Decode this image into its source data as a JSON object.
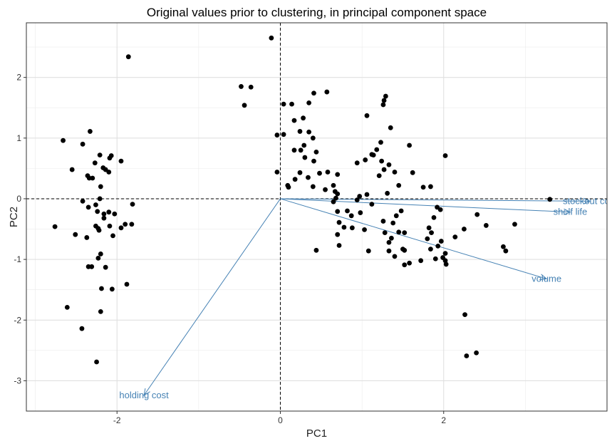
{
  "chart_data": {
    "type": "scatter",
    "title": "Original values prior to clustering, in principal component space",
    "xlabel": "PC1",
    "ylabel": "PC2",
    "xlim": [
      -3.11,
      4.0
    ],
    "ylim": [
      -3.5,
      2.9
    ],
    "x_ticks": [
      -2,
      0,
      2
    ],
    "y_ticks": [
      -3,
      -2,
      -1,
      0,
      1,
      2
    ],
    "x_tick_labels": [
      "-2",
      "0",
      "2"
    ],
    "y_tick_labels": [
      "-3",
      "-2",
      "-1",
      "0",
      "1",
      "2"
    ],
    "grid": true,
    "reference_lines": {
      "x": 0,
      "y": 0,
      "style": "dashed"
    },
    "points": [
      [
        -1.86,
        2.34
      ],
      [
        -2.66,
        0.96
      ],
      [
        -2.55,
        0.48
      ],
      [
        -2.42,
        0.9
      ],
      [
        -2.33,
        1.11
      ],
      [
        -2.36,
        0.38
      ],
      [
        -2.3,
        0.34
      ],
      [
        -2.27,
        0.59
      ],
      [
        -2.21,
        0.72
      ],
      [
        -2.14,
        0.48
      ],
      [
        -2.1,
        0.44
      ],
      [
        -2.09,
        0.67
      ],
      [
        -2.07,
        0.71
      ],
      [
        -2.17,
        0.51
      ],
      [
        -2.34,
        0.34
      ],
      [
        -2.2,
        0.2
      ],
      [
        -1.95,
        0.62
      ],
      [
        -2.21,
        0.0
      ],
      [
        -2.42,
        -0.04
      ],
      [
        -2.35,
        -0.14
      ],
      [
        -2.26,
        -0.1
      ],
      [
        -2.24,
        -0.21
      ],
      [
        -2.16,
        -0.25
      ],
      [
        -2.1,
        -0.22
      ],
      [
        -2.03,
        -0.25
      ],
      [
        -1.81,
        -0.09
      ],
      [
        -2.16,
        -0.32
      ],
      [
        -2.26,
        -0.45
      ],
      [
        -2.23,
        -0.49
      ],
      [
        -2.09,
        -0.45
      ],
      [
        -2.05,
        -0.61
      ],
      [
        -1.95,
        -0.48
      ],
      [
        -1.9,
        -0.42
      ],
      [
        -1.82,
        -0.42
      ],
      [
        -2.76,
        -0.46
      ],
      [
        -2.51,
        -0.59
      ],
      [
        -2.37,
        -0.64
      ],
      [
        -2.22,
        -0.52
      ],
      [
        -2.2,
        -0.91
      ],
      [
        -2.23,
        -0.98
      ],
      [
        -2.14,
        -1.13
      ],
      [
        -2.35,
        -1.12
      ],
      [
        -2.31,
        -1.12
      ],
      [
        -2.19,
        -1.48
      ],
      [
        -2.06,
        -1.49
      ],
      [
        -1.88,
        -1.41
      ],
      [
        -2.2,
        -1.86
      ],
      [
        -2.61,
        -1.79
      ],
      [
        -2.43,
        -2.14
      ],
      [
        -2.25,
        -2.69
      ],
      [
        -0.11,
        2.65
      ],
      [
        -0.36,
        1.84
      ],
      [
        -0.48,
        1.85
      ],
      [
        -0.44,
        1.54
      ],
      [
        0.04,
        1.56
      ],
      [
        0.14,
        1.56
      ],
      [
        0.04,
        1.06
      ],
      [
        -0.04,
        1.05
      ],
      [
        -0.04,
        0.44
      ],
      [
        0.09,
        0.22
      ],
      [
        0.1,
        0.19
      ],
      [
        0.18,
        0.32
      ],
      [
        0.17,
        0.8
      ],
      [
        0.17,
        1.29
      ],
      [
        0.24,
        1.11
      ],
      [
        0.28,
        1.33
      ],
      [
        0.35,
        1.58
      ],
      [
        0.41,
        1.74
      ],
      [
        0.57,
        1.76
      ],
      [
        0.35,
        1.1
      ],
      [
        0.29,
        0.88
      ],
      [
        0.25,
        0.8
      ],
      [
        0.4,
        1.0
      ],
      [
        0.44,
        0.77
      ],
      [
        0.3,
        0.68
      ],
      [
        0.24,
        0.43
      ],
      [
        0.34,
        0.35
      ],
      [
        0.4,
        0.2
      ],
      [
        0.41,
        0.62
      ],
      [
        0.48,
        0.42
      ],
      [
        0.58,
        0.44
      ],
      [
        0.55,
        0.15
      ],
      [
        0.65,
        0.22
      ],
      [
        0.7,
        0.4
      ],
      [
        0.67,
        0.12
      ],
      [
        0.7,
        0.08
      ],
      [
        0.68,
        0.01
      ],
      [
        0.65,
        -0.05
      ],
      [
        0.7,
        -0.21
      ],
      [
        0.72,
        -0.39
      ],
      [
        0.82,
        -0.2
      ],
      [
        0.7,
        -0.59
      ],
      [
        0.78,
        -0.47
      ],
      [
        0.87,
        -0.28
      ],
      [
        0.88,
        -0.48
      ],
      [
        0.72,
        -0.77
      ],
      [
        0.98,
        -0.23
      ],
      [
        1.03,
        -0.51
      ],
      [
        0.94,
        -0.02
      ],
      [
        0.97,
        0.04
      ],
      [
        1.06,
        0.07
      ],
      [
        1.12,
        -0.09
      ],
      [
        1.08,
        -0.86
      ],
      [
        0.44,
        -0.85
      ],
      [
        1.06,
        1.37
      ],
      [
        0.94,
        0.59
      ],
      [
        1.04,
        0.64
      ],
      [
        1.12,
        0.73
      ],
      [
        1.14,
        0.72
      ],
      [
        1.18,
        0.81
      ],
      [
        1.23,
        0.93
      ],
      [
        1.21,
        0.38
      ],
      [
        1.33,
        0.56
      ],
      [
        1.4,
        0.44
      ],
      [
        1.24,
        0.62
      ],
      [
        1.27,
        0.48
      ],
      [
        1.29,
        1.69
      ],
      [
        1.27,
        1.62
      ],
      [
        1.35,
        1.17
      ],
      [
        1.26,
        1.55
      ],
      [
        1.31,
        0.09
      ],
      [
        1.26,
        -0.37
      ],
      [
        1.28,
        -0.56
      ],
      [
        1.42,
        -0.28
      ],
      [
        1.33,
        -0.72
      ],
      [
        1.33,
        -0.86
      ],
      [
        1.48,
        -0.2
      ],
      [
        1.38,
        -0.4
      ],
      [
        1.45,
        -0.55
      ],
      [
        1.62,
        0.43
      ],
      [
        1.58,
        0.88
      ],
      [
        1.45,
        0.22
      ],
      [
        1.52,
        -0.56
      ],
      [
        1.5,
        -0.83
      ],
      [
        1.52,
        -0.85
      ],
      [
        1.4,
        -0.95
      ],
      [
        1.36,
        -0.65
      ],
      [
        1.58,
        -1.06
      ],
      [
        1.52,
        -1.09
      ],
      [
        1.72,
        -1.02
      ],
      [
        1.75,
        0.19
      ],
      [
        1.84,
        0.2
      ],
      [
        2.02,
        0.71
      ],
      [
        1.92,
        -0.14
      ],
      [
        1.96,
        -0.18
      ],
      [
        1.88,
        -0.31
      ],
      [
        1.82,
        -0.48
      ],
      [
        1.85,
        -0.56
      ],
      [
        1.8,
        -0.66
      ],
      [
        1.97,
        -0.7
      ],
      [
        1.93,
        -0.78
      ],
      [
        1.84,
        -0.83
      ],
      [
        1.9,
        -0.99
      ],
      [
        2.02,
        -1.02
      ],
      [
        2.02,
        -0.9
      ],
      [
        1.99,
        -0.97
      ],
      [
        2.25,
        -0.5
      ],
      [
        2.41,
        -0.26
      ],
      [
        2.14,
        -0.63
      ],
      [
        2.03,
        -1.08
      ],
      [
        2.26,
        -1.91
      ],
      [
        2.4,
        -2.54
      ],
      [
        2.28,
        -2.59
      ],
      [
        2.52,
        -0.44
      ],
      [
        2.73,
        -0.79
      ],
      [
        2.76,
        -0.86
      ],
      [
        2.87,
        -0.42
      ],
      [
        3.3,
        -0.01
      ]
    ],
    "vectors": [
      {
        "label": "stockout cost",
        "x": 3.79,
        "y": -0.04
      },
      {
        "label": "shelf life",
        "x": 3.55,
        "y": -0.22
      },
      {
        "label": "volume",
        "x": 3.26,
        "y": -1.32
      },
      {
        "label": "holding cost",
        "x": -1.67,
        "y": -3.24
      }
    ],
    "colors": {
      "points": "#000000",
      "vectors": "#4682B4",
      "grid": "#EBEBEB",
      "panel_border": "#333333"
    }
  }
}
